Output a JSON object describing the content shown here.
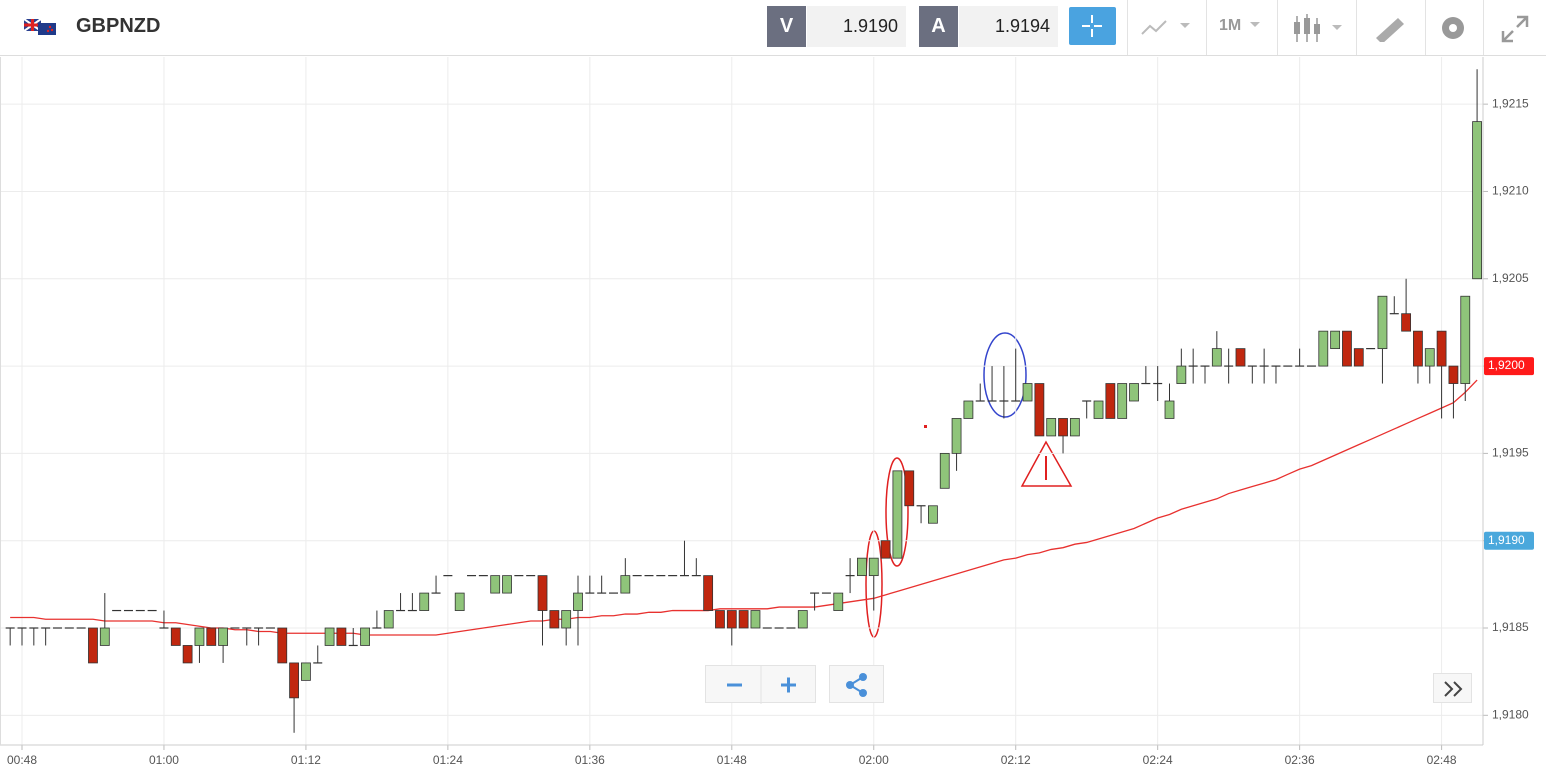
{
  "header": {
    "symbol": "GBPNZD",
    "sell_label": "V",
    "sell_price": "1.9190",
    "buy_label": "A",
    "buy_price": "1.9194",
    "timeframe": "1M"
  },
  "chart_data": {
    "type": "candlestick",
    "categories": [
      null,
      "00:48",
      null,
      null,
      null,
      null,
      null,
      null,
      null,
      null,
      null,
      null,
      null,
      "01:00",
      null,
      null,
      null,
      null,
      null,
      null,
      null,
      null,
      null,
      null,
      null,
      "01:12",
      null,
      null,
      null,
      null,
      null,
      null,
      null,
      null,
      null,
      null,
      null,
      "01:24",
      null,
      null,
      null,
      null,
      null,
      null,
      null,
      null,
      null,
      null,
      null,
      "01:36",
      null,
      null,
      null,
      null,
      null,
      null,
      null,
      null,
      null,
      null,
      null,
      "01:48",
      null,
      null,
      null,
      null,
      null,
      null,
      null,
      null,
      null,
      null,
      null,
      "02:00",
      null,
      null,
      null,
      null,
      null,
      null,
      null,
      null,
      null,
      null,
      null,
      "02:12",
      null,
      null,
      null,
      null,
      null,
      null,
      null,
      null,
      null,
      null,
      null,
      "02:24",
      null,
      null,
      null,
      null,
      null,
      null,
      null,
      null,
      null,
      null,
      null,
      "02:36",
      null,
      null,
      null,
      null,
      null,
      null,
      null,
      null,
      null,
      null,
      null,
      "02:48",
      null,
      null,
      null
    ],
    "open": [
      1.9185,
      1.9185,
      1.9185,
      1.9185,
      1.9185,
      1.9185,
      1.9185,
      1.9185,
      1.9184,
      1.9186,
      1.9186,
      1.9186,
      1.9186,
      1.9185,
      1.9185,
      1.9184,
      1.9184,
      1.9185,
      1.9184,
      1.9185,
      1.9185,
      1.9185,
      1.9185,
      1.9185,
      1.9183,
      1.9182,
      1.9183,
      1.9184,
      1.9185,
      1.9184,
      1.9184,
      1.9185,
      1.9185,
      1.9186,
      1.9186,
      1.9186,
      1.9187,
      1.9188,
      1.9186,
      1.9188,
      1.9188,
      1.9187,
      1.9187,
      1.9188,
      1.9188,
      1.9188,
      1.9186,
      1.9185,
      1.9186,
      1.9187,
      1.9187,
      1.9187,
      1.9187,
      1.9188,
      1.9188,
      1.9188,
      1.9188,
      1.9188,
      1.9188,
      1.9188,
      1.9186,
      1.9186,
      1.9186,
      1.9185,
      1.9185,
      1.9185,
      1.9185,
      1.9185,
      1.9187,
      1.9187,
      1.9186,
      1.9188,
      1.9188,
      1.9188,
      1.919,
      1.9189,
      1.9194,
      1.9192,
      1.9191,
      1.9193,
      1.9195,
      1.9197,
      1.9198,
      1.9198,
      1.9198,
      1.9198,
      1.9198,
      1.9199,
      1.9196,
      1.9197,
      1.9196,
      1.9198,
      1.9197,
      1.9199,
      1.9197,
      1.9198,
      1.9199,
      1.9199,
      1.9197,
      1.9199,
      1.92,
      1.92,
      1.92,
      1.92,
      1.9201,
      1.92,
      1.92,
      1.92,
      1.92,
      1.92,
      1.92,
      1.92,
      1.9201,
      1.9202,
      1.9201,
      1.9201,
      1.9201,
      1.9203,
      1.9203,
      1.9202,
      1.92,
      1.9202,
      1.92,
      1.9199,
      1.9205
    ],
    "high": [
      1.9185,
      1.9185,
      1.9185,
      1.9185,
      1.9185,
      1.9185,
      1.9185,
      1.9185,
      1.9187,
      1.9186,
      1.9186,
      1.9186,
      1.9186,
      1.9186,
      1.9185,
      1.9184,
      1.9185,
      1.9185,
      1.9185,
      1.9185,
      1.9185,
      1.9185,
      1.9185,
      1.9185,
      1.9183,
      1.9183,
      1.9184,
      1.9185,
      1.9185,
      1.9185,
      1.9185,
      1.9186,
      1.9186,
      1.9187,
      1.9187,
      1.9187,
      1.9188,
      1.9188,
      1.9187,
      1.9188,
      1.9188,
      1.9188,
      1.9188,
      1.9188,
      1.9188,
      1.9188,
      1.9186,
      1.9186,
      1.9188,
      1.9188,
      1.9188,
      1.9187,
      1.9189,
      1.9188,
      1.9188,
      1.9188,
      1.9188,
      1.919,
      1.9189,
      1.9188,
      1.9186,
      1.9186,
      1.9186,
      1.9186,
      1.9185,
      1.9185,
      1.9185,
      1.9186,
      1.9187,
      1.9187,
      1.9187,
      1.9189,
      1.9189,
      1.9189,
      1.919,
      1.9194,
      1.9194,
      1.9192,
      1.9192,
      1.9195,
      1.9197,
      1.9198,
      1.9199,
      1.92,
      1.92,
      1.9201,
      1.9199,
      1.9199,
      1.9197,
      1.9197,
      1.9197,
      1.9198,
      1.9198,
      1.9199,
      1.9199,
      1.9199,
      1.92,
      1.92,
      1.9199,
      1.9201,
      1.9201,
      1.92,
      1.9202,
      1.9201,
      1.9201,
      1.92,
      1.9201,
      1.92,
      1.92,
      1.9201,
      1.92,
      1.9202,
      1.9202,
      1.9202,
      1.9201,
      1.9201,
      1.9204,
      1.9204,
      1.9205,
      1.9202,
      1.9201,
      1.9202,
      1.92,
      1.9204,
      1.9217
    ],
    "low": [
      1.9184,
      1.9184,
      1.9184,
      1.9184,
      1.9185,
      1.9185,
      1.9185,
      1.9183,
      1.9184,
      1.9186,
      1.9186,
      1.9186,
      1.9186,
      1.9185,
      1.9184,
      1.9183,
      1.9183,
      1.9184,
      1.9183,
      1.9185,
      1.9184,
      1.9184,
      1.9185,
      1.9183,
      1.9179,
      1.9182,
      1.9183,
      1.9184,
      1.9184,
      1.9184,
      1.9184,
      1.9185,
      1.9185,
      1.9186,
      1.9186,
      1.9186,
      1.9187,
      1.9188,
      1.9186,
      1.9188,
      1.9188,
      1.9187,
      1.9187,
      1.9188,
      1.9188,
      1.9184,
      1.9185,
      1.9184,
      1.9184,
      1.9187,
      1.9187,
      1.9187,
      1.9187,
      1.9188,
      1.9188,
      1.9188,
      1.9188,
      1.9188,
      1.9188,
      1.9186,
      1.9185,
      1.9184,
      1.9185,
      1.9185,
      1.9185,
      1.9185,
      1.9185,
      1.9185,
      1.9186,
      1.9187,
      1.9186,
      1.9187,
      1.9188,
      1.9186,
      1.9189,
      1.9189,
      1.9192,
      1.9191,
      1.9191,
      1.9193,
      1.9194,
      1.9197,
      1.9198,
      1.9198,
      1.9197,
      1.9198,
      1.9198,
      1.9196,
      1.9196,
      1.9195,
      1.9196,
      1.9197,
      1.9197,
      1.9197,
      1.9197,
      1.9198,
      1.9199,
      1.9198,
      1.9197,
      1.9199,
      1.9199,
      1.9199,
      1.92,
      1.9199,
      1.92,
      1.9199,
      1.9199,
      1.9199,
      1.92,
      1.92,
      1.92,
      1.92,
      1.9201,
      1.92,
      1.92,
      1.9201,
      1.9199,
      1.9203,
      1.9202,
      1.9199,
      1.9199,
      1.9197,
      1.9197,
      1.9198,
      1.9205
    ],
    "close": [
      1.9185,
      1.9185,
      1.9185,
      1.9185,
      1.9185,
      1.9185,
      1.9185,
      1.9183,
      1.9185,
      1.9186,
      1.9186,
      1.9186,
      1.9186,
      1.9185,
      1.9184,
      1.9183,
      1.9185,
      1.9184,
      1.9185,
      1.9185,
      1.9185,
      1.9185,
      1.9185,
      1.9183,
      1.9181,
      1.9183,
      1.9183,
      1.9185,
      1.9184,
      1.9184,
      1.9185,
      1.9185,
      1.9186,
      1.9186,
      1.9186,
      1.9187,
      1.9187,
      1.9188,
      1.9187,
      1.9188,
      1.9188,
      1.9188,
      1.9188,
      1.9188,
      1.9188,
      1.9186,
      1.9185,
      1.9186,
      1.9187,
      1.9187,
      1.9187,
      1.9187,
      1.9188,
      1.9188,
      1.9188,
      1.9188,
      1.9188,
      1.9188,
      1.9188,
      1.9186,
      1.9185,
      1.9185,
      1.9185,
      1.9186,
      1.9185,
      1.9185,
      1.9185,
      1.9186,
      1.9187,
      1.9187,
      1.9187,
      1.9188,
      1.9189,
      1.9189,
      1.9189,
      1.9194,
      1.9192,
      1.9192,
      1.9192,
      1.9195,
      1.9197,
      1.9198,
      1.9198,
      1.9198,
      1.9198,
      1.9198,
      1.9199,
      1.9196,
      1.9197,
      1.9196,
      1.9197,
      1.9198,
      1.9198,
      1.9197,
      1.9199,
      1.9199,
      1.9199,
      1.9199,
      1.9198,
      1.92,
      1.92,
      1.92,
      1.9201,
      1.92,
      1.92,
      1.92,
      1.92,
      1.92,
      1.92,
      1.92,
      1.92,
      1.9202,
      1.9202,
      1.92,
      1.92,
      1.9201,
      1.9204,
      1.9203,
      1.9202,
      1.92,
      1.9201,
      1.92,
      1.9199,
      1.9204,
      1.9214
    ],
    "up_color": "#8fc47a",
    "down_color": "#c0270f",
    "flat_color": "#333333",
    "moving_average": {
      "color": "#e8312f",
      "values": [
        1.91856,
        1.91856,
        1.91856,
        1.91855,
        1.91855,
        1.91855,
        1.91855,
        1.91855,
        1.91854,
        1.91854,
        1.91854,
        1.91854,
        1.91854,
        1.91853,
        1.91853,
        1.91852,
        1.91851,
        1.9185,
        1.9185,
        1.91849,
        1.91849,
        1.91848,
        1.91848,
        1.91847,
        1.91847,
        1.91847,
        1.91847,
        1.91847,
        1.91847,
        1.91847,
        1.91846,
        1.91846,
        1.91846,
        1.91846,
        1.91846,
        1.91846,
        1.91846,
        1.91847,
        1.91848,
        1.91849,
        1.9185,
        1.91851,
        1.91852,
        1.91853,
        1.91854,
        1.91854,
        1.91855,
        1.91855,
        1.91856,
        1.91856,
        1.91857,
        1.91857,
        1.91858,
        1.91858,
        1.91859,
        1.91859,
        1.9186,
        1.9186,
        1.9186,
        1.9186,
        1.91861,
        1.91861,
        1.91861,
        1.91861,
        1.91861,
        1.91862,
        1.91862,
        1.91862,
        1.91862,
        1.91863,
        1.91864,
        1.91865,
        1.91866,
        1.91867,
        1.91869,
        1.91871,
        1.91873,
        1.91875,
        1.91877,
        1.91879,
        1.91881,
        1.91883,
        1.91885,
        1.91887,
        1.91889,
        1.9189,
        1.91892,
        1.91893,
        1.91895,
        1.91896,
        1.91898,
        1.91899,
        1.91901,
        1.91903,
        1.91905,
        1.91907,
        1.9191,
        1.91913,
        1.91915,
        1.91918,
        1.9192,
        1.91922,
        1.91924,
        1.91927,
        1.91929,
        1.91931,
        1.91933,
        1.91935,
        1.91938,
        1.91941,
        1.91943,
        1.91946,
        1.91949,
        1.91952,
        1.91955,
        1.91958,
        1.91961,
        1.91964,
        1.91967,
        1.9197,
        1.91973,
        1.91976,
        1.91979,
        1.91985,
        1.91992
      ]
    },
    "ylim": [
      1.91783,
      1.92177
    ],
    "yticks": [
      {
        "value": 1.918,
        "label": "1,9180"
      },
      {
        "value": 1.9185,
        "label": "1,9185"
      },
      {
        "value": 1.919,
        "label": "1,9190"
      },
      {
        "value": 1.9195,
        "label": "1,9195"
      },
      {
        "value": 1.92,
        "label": "1,9200"
      },
      {
        "value": 1.9205,
        "label": "1,9205"
      },
      {
        "value": 1.921,
        "label": "1,9210"
      },
      {
        "value": 1.9215,
        "label": "1,9215"
      }
    ],
    "grid": true,
    "price_tags": [
      {
        "value": 1.92,
        "label": "1,9200",
        "color": "#ff1a1a"
      },
      {
        "value": 1.919,
        "label": "1,9190",
        "color": "#4aa8dc"
      }
    ]
  }
}
